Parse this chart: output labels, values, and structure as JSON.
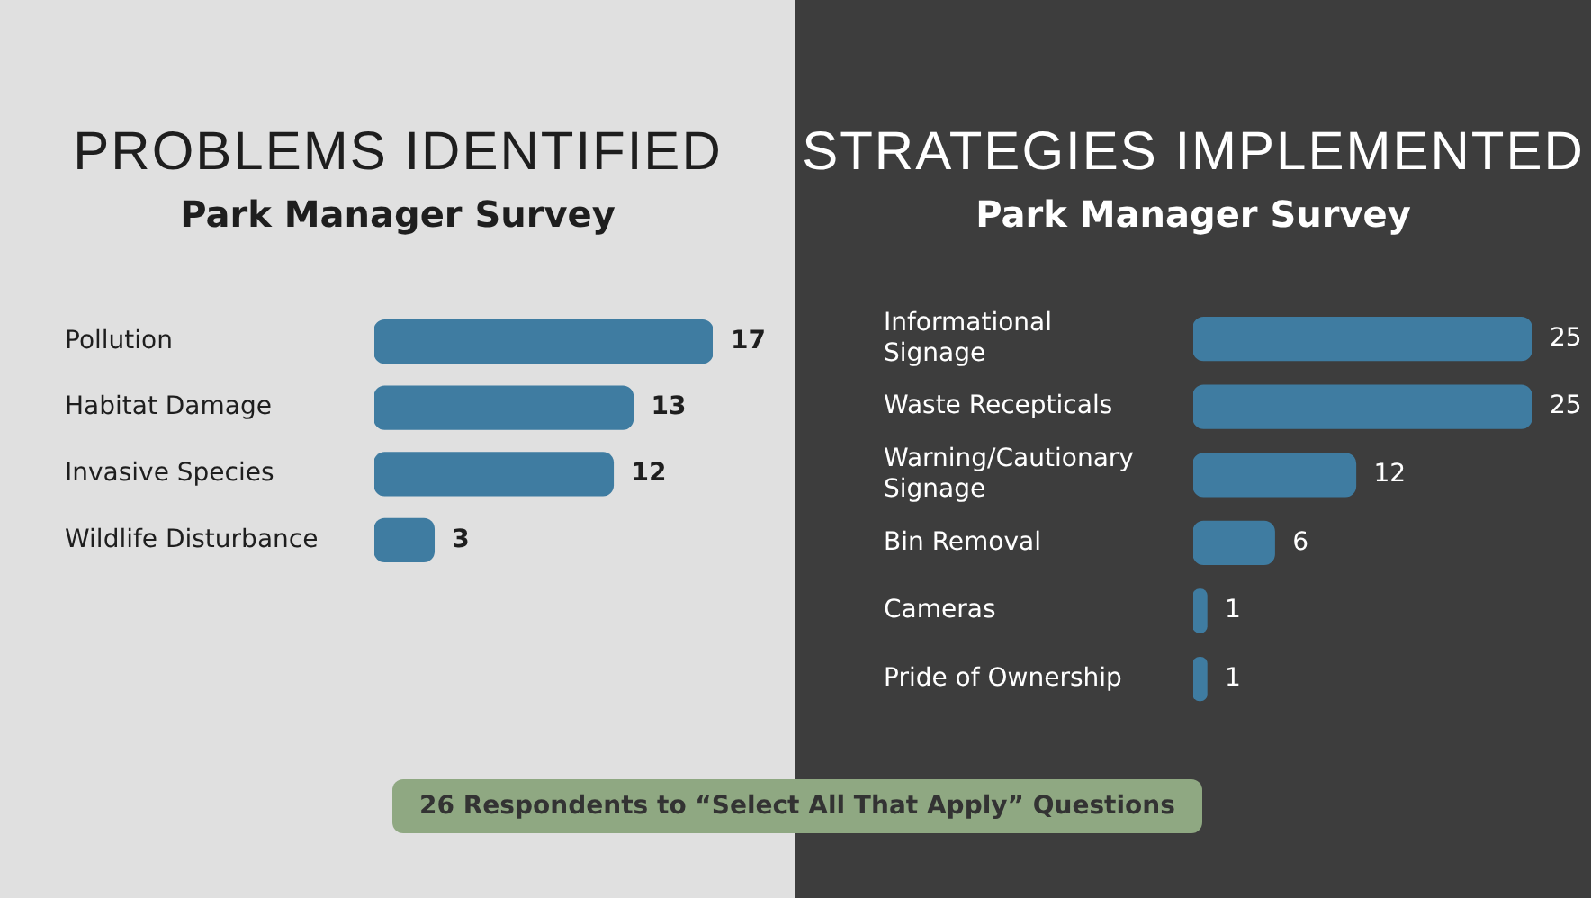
{
  "chart_data": [
    {
      "type": "bar",
      "orientation": "horizontal",
      "title": "PROBLEMS IDENTIFIED",
      "subtitle": "Park Manager Survey",
      "categories": [
        "Pollution",
        "Habitat Damage",
        "Invasive Species",
        "Wildlife Disturbance"
      ],
      "values": [
        17,
        13,
        12,
        3
      ],
      "color": "#3f7ca1",
      "data_labels": true,
      "annotations": [
        "26 Respondents to “Select All That Apply” Questions"
      ]
    },
    {
      "type": "bar",
      "orientation": "horizontal",
      "title": "STRATEGIES IMPLEMENTED",
      "subtitle": "Park Manager Survey",
      "categories": [
        "Informational Signage",
        "Waste Recepticals",
        "Warning/Cautionary Signage",
        "Bin Removal",
        "Cameras",
        "Pride of Ownership"
      ],
      "values": [
        25,
        25,
        12,
        6,
        1,
        1
      ],
      "color": "#3f7ca1",
      "data_labels": true
    }
  ]
}
